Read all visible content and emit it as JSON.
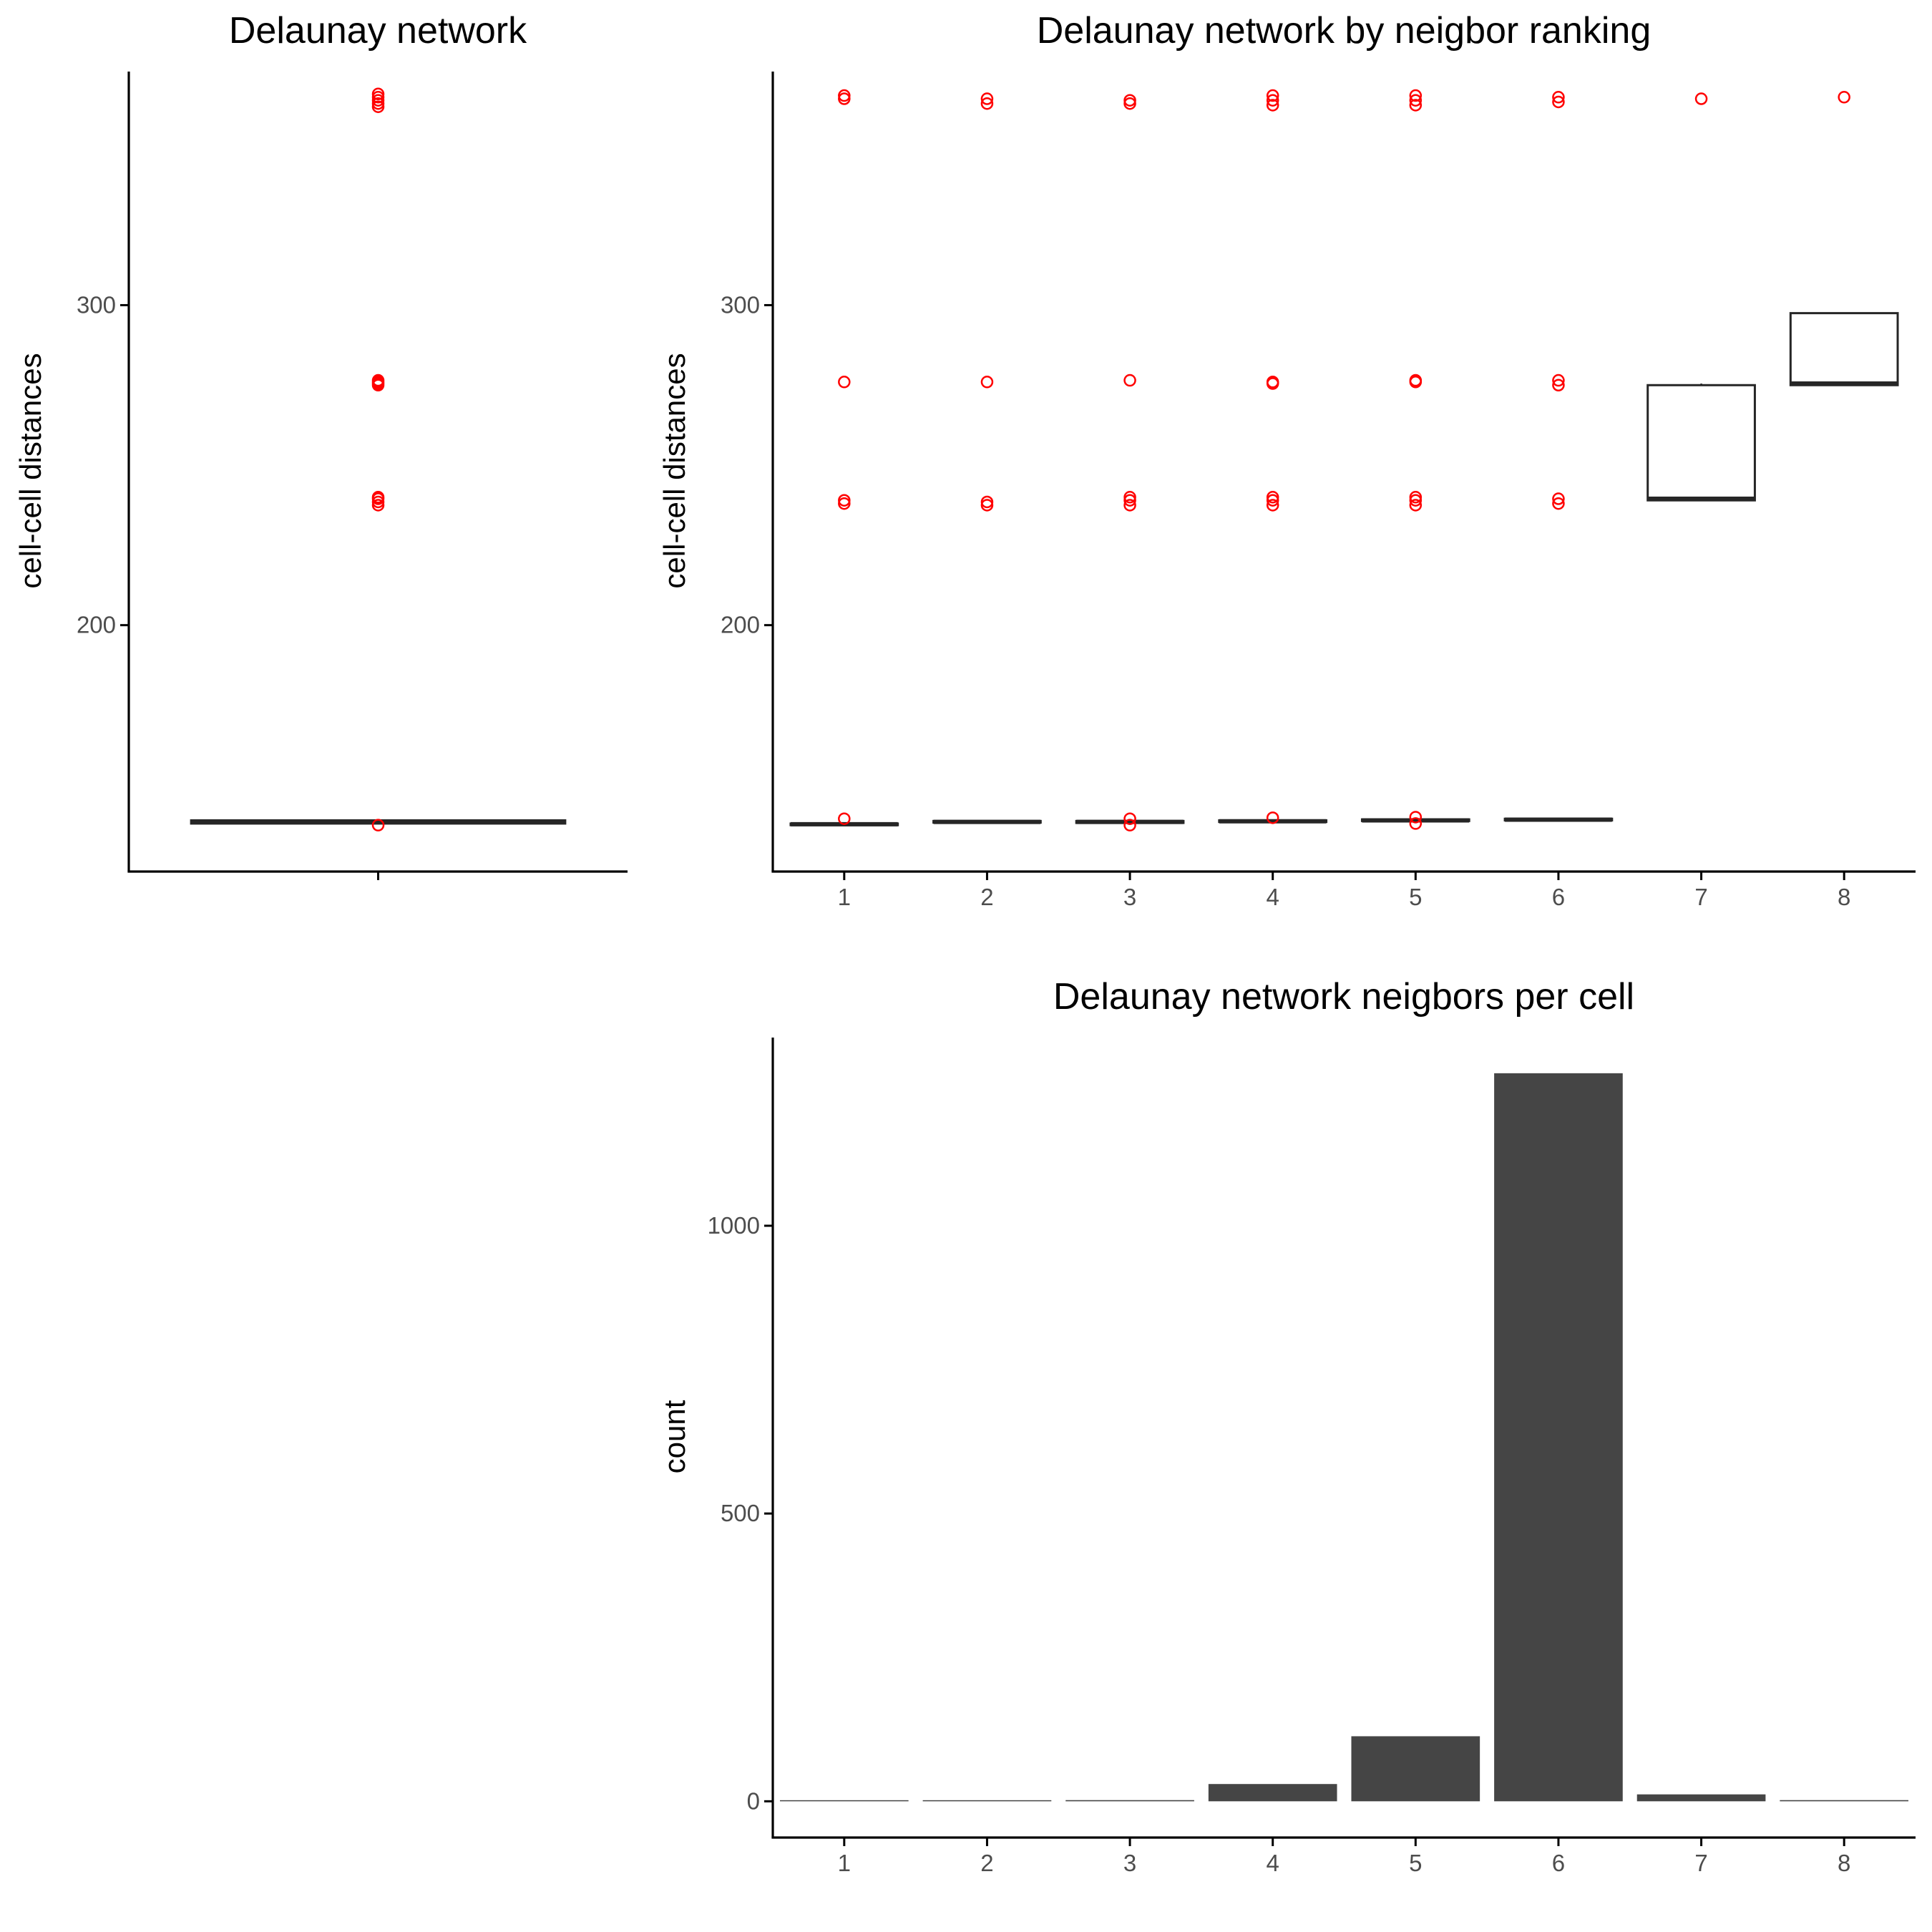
{
  "colors": {
    "outlier": "#ff0000",
    "box_line": "#262626",
    "bar_fill": "#454545",
    "axis": "#000000",
    "tick_text": "#4d4d4d"
  },
  "chart_data": [
    {
      "type": "box",
      "title": "Delaunay network",
      "xlabel": "",
      "ylabel": "cell-cell distances",
      "ylim": [
        123,
        373
      ],
      "yticks": [
        200,
        300
      ],
      "x_tick_labels": [
        ""
      ],
      "boxes": [
        {
          "category": "",
          "q1": 138,
          "median": 138.5,
          "q3": 139,
          "whisker_low": 138,
          "whisker_high": 139,
          "outliers": [
            137.5,
            237.5,
            238.5,
            239.5,
            240,
            275,
            275.5,
            276,
            276.5,
            362,
            363,
            364,
            365,
            366
          ]
        }
      ]
    },
    {
      "type": "box",
      "title": "Delaunay network by neigbor ranking",
      "xlabel": "",
      "ylabel": "cell-cell distances",
      "ylim": [
        123,
        373
      ],
      "yticks": [
        200,
        300
      ],
      "x_tick_labels": [
        "1",
        "2",
        "3",
        "4",
        "5",
        "6",
        "7",
        "8"
      ],
      "boxes": [
        {
          "category": "1",
          "q1": 137.5,
          "median": 137.8,
          "q3": 138,
          "whisker_low": 137.5,
          "whisker_high": 138,
          "outliers": [
            139.5,
            238,
            239,
            276,
            364.5,
            365.5
          ]
        },
        {
          "category": "2",
          "q1": 138.3,
          "median": 138.5,
          "q3": 138.8,
          "whisker_low": 138.3,
          "whisker_high": 138.8,
          "outliers": [
            237.5,
            238.5,
            276,
            363,
            364.5
          ]
        },
        {
          "category": "3",
          "q1": 138.2,
          "median": 138.5,
          "q3": 138.8,
          "whisker_low": 138.2,
          "whisker_high": 138.8,
          "outliers": [
            137.5,
            139.5,
            237.5,
            239,
            240,
            276.5,
            363,
            364
          ]
        },
        {
          "category": "4",
          "q1": 138.5,
          "median": 138.7,
          "q3": 139,
          "whisker_low": 138.5,
          "whisker_high": 139,
          "outliers": [
            139.8,
            237.5,
            239,
            240,
            275.5,
            276,
            362.5,
            364,
            365.5
          ]
        },
        {
          "category": "5",
          "q1": 138.8,
          "median": 139,
          "q3": 139.3,
          "whisker_low": 138.8,
          "whisker_high": 139.3,
          "outliers": [
            138,
            140,
            237.5,
            239,
            240,
            276,
            276.5,
            362.5,
            364,
            365.5
          ]
        },
        {
          "category": "6",
          "q1": 139,
          "median": 139.2,
          "q3": 139.5,
          "whisker_low": 139,
          "whisker_high": 139.5,
          "outliers": [
            238,
            239.5,
            275,
            276.5,
            363.5,
            365
          ]
        },
        {
          "category": "7",
          "q1": 239,
          "median": 239.5,
          "q3": 275,
          "whisker_low": 239,
          "whisker_high": 275.5,
          "outliers": [
            364.5
          ]
        },
        {
          "category": "8",
          "q1": 275,
          "median": 275.5,
          "q3": 297.5,
          "whisker_low": 275,
          "whisker_high": 297.5,
          "outliers": [
            365
          ]
        }
      ]
    },
    {
      "type": "bar",
      "title": "Delaunay network neigbors per cell",
      "xlabel": "",
      "ylabel": "count",
      "categories": [
        "1",
        "2",
        "3",
        "4",
        "5",
        "6",
        "7",
        "8"
      ],
      "values": [
        1,
        1,
        2,
        30,
        113,
        1265,
        12,
        2
      ],
      "ylim": [
        -63,
        1327
      ],
      "yticks": [
        0,
        500,
        1000
      ]
    }
  ]
}
